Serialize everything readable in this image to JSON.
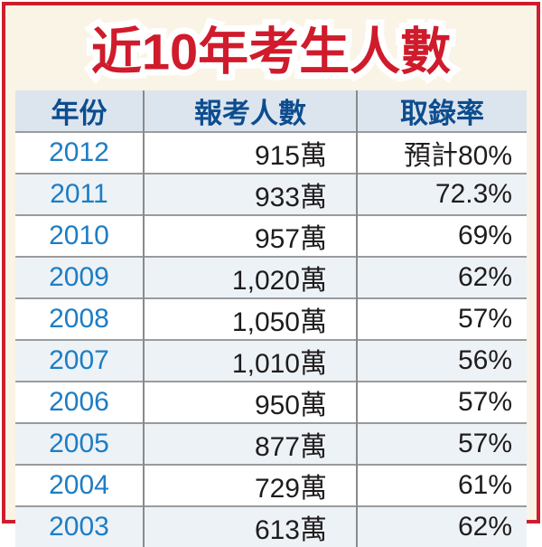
{
  "title": "近10年考生人數",
  "table": {
    "columns": [
      {
        "key": "year",
        "label": "年份"
      },
      {
        "key": "applicants",
        "label": "報考人數"
      },
      {
        "key": "rate",
        "label": "取錄率"
      }
    ],
    "rows": [
      {
        "year": "2012",
        "applicants": "915萬",
        "rate": "預計80%"
      },
      {
        "year": "2011",
        "applicants": "933萬",
        "rate": "72.3%"
      },
      {
        "year": "2010",
        "applicants": "957萬",
        "rate": "69%"
      },
      {
        "year": "2009",
        "applicants": "1,020萬",
        "rate": "62%"
      },
      {
        "year": "2008",
        "applicants": "1,050萬",
        "rate": "57%"
      },
      {
        "year": "2007",
        "applicants": "1,010萬",
        "rate": "56%"
      },
      {
        "year": "2006",
        "applicants": "950萬",
        "rate": "57%"
      },
      {
        "year": "2005",
        "applicants": "877萬",
        "rate": "57%"
      },
      {
        "year": "2004",
        "applicants": "729萬",
        "rate": "61%"
      },
      {
        "year": "2003",
        "applicants": "613萬",
        "rate": "62%"
      }
    ]
  },
  "colors": {
    "border_red": "#ce1e2d",
    "title_red": "#cf1b2b",
    "cream_bg": "#faf4e6",
    "header_bg": "#dce5ee",
    "header_text": "#0d4d8f",
    "year_blue": "#1d7dc4",
    "alt_row_bg": "#edf2f7",
    "grid_line": "#9b9b9b",
    "divider_line": "#8a8a8a",
    "value_text": "#1f1c1d"
  },
  "chart_data": {
    "type": "table",
    "title": "近10年考生人數",
    "columns": [
      "年份",
      "報考人數",
      "取錄率"
    ],
    "years": [
      2012,
      2011,
      2010,
      2009,
      2008,
      2007,
      2006,
      2005,
      2004,
      2003
    ],
    "applicants_wan": [
      915,
      933,
      957,
      1020,
      1050,
      1010,
      950,
      877,
      729,
      613
    ],
    "admission_rate_pct": [
      80,
      72.3,
      69,
      62,
      57,
      56,
      57,
      57,
      61,
      62
    ],
    "annotations": "2012年取錄率為預計值 (預計80%)"
  }
}
